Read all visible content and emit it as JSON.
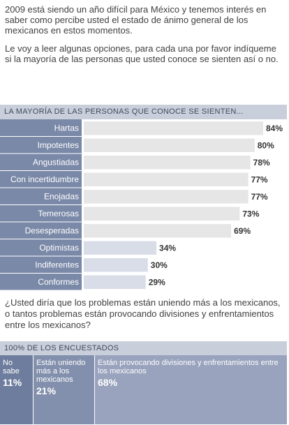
{
  "intro": {
    "p1": "2009 está siendo un año difícil para México y tenemos interés en saber como percibe usted el estado de ánimo general de los mexicanos en estos momentos.",
    "p2": "Le voy a leer algunas opciones, para cada una por favor indíqueme si la mayoría de las personas que usted conoce se sienten así o no."
  },
  "question2": "¿Usted diría que los problemas están uniendo más a los mexicanos, o tantos problemas están provocando divisiones y enfrentamientos entre los mexicanos?",
  "chart_data": [
    {
      "type": "bar",
      "orientation": "horizontal",
      "title": "LA MAYORÍA DE LAS PERSONAS QUE CONOCE SE SIENTEN...",
      "categories": [
        "Hartas",
        "Impotentes",
        "Angustiadas",
        "Con incertidumbre",
        "Enojadas",
        "Temerosas",
        "Desesperadas",
        "Optimistas",
        "Indiferentes",
        "Conformes"
      ],
      "values": [
        84,
        80,
        78,
        77,
        77,
        73,
        69,
        34,
        30,
        29
      ],
      "value_labels": [
        "84%",
        "80%",
        "78%",
        "77%",
        "77%",
        "73%",
        "69%",
        "34%",
        "30%",
        "29%"
      ],
      "negative_from_index": 7,
      "xlim": [
        0,
        100
      ],
      "colors": {
        "label_panel": "#7a89a8",
        "bar": "#e6e6e6",
        "bar_alt": "#d9dde8",
        "label_text": "#ffffff",
        "value_text": "#333333"
      }
    },
    {
      "type": "bar",
      "orientation": "stacked",
      "title": "100% DE LOS ENCUESTADOS",
      "categories": [
        "No sabe",
        "Están uniendo más a los mexicanos",
        "Están provocando divisiones y enfrentamientos entre los mexicanos"
      ],
      "values": [
        11,
        21,
        68
      ],
      "value_labels": [
        "11%",
        "21%",
        "68%"
      ],
      "colors": [
        "#6e7d9e",
        "#8390ad",
        "#99a3bd"
      ]
    }
  ]
}
